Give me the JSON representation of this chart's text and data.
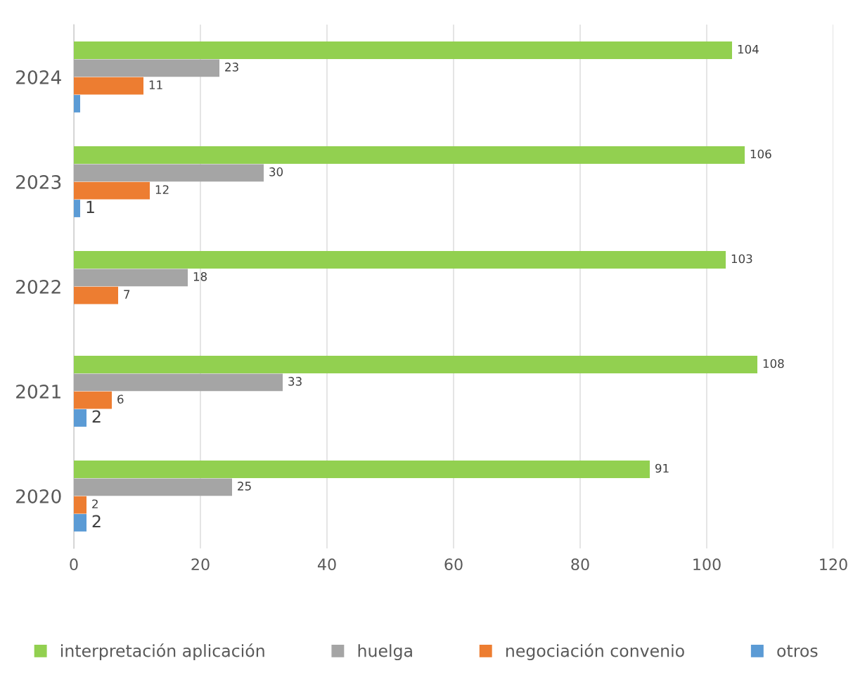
{
  "chart_data": {
    "type": "bar",
    "orientation": "horizontal",
    "categories": [
      "2024",
      "2023",
      "2022",
      "2021",
      "2020"
    ],
    "series": [
      {
        "name": "interpretación aplicación",
        "color": "#92d050",
        "values": [
          104,
          106,
          103,
          108,
          91
        ],
        "value_labels": [
          "104",
          "106",
          "103",
          "108",
          "91"
        ]
      },
      {
        "name": "huelga",
        "color": "#a5a5a5",
        "values": [
          23,
          30,
          18,
          33,
          25
        ],
        "value_labels": [
          "23",
          "30",
          "18",
          "33",
          "25"
        ]
      },
      {
        "name": "negociación convenio",
        "color": "#ed7d31",
        "values": [
          11,
          12,
          7,
          6,
          2
        ],
        "value_labels": [
          "11",
          "12",
          "7",
          "6",
          "2"
        ]
      },
      {
        "name": "otros",
        "color": "#5b9bd5",
        "values": [
          1,
          1,
          null,
          2,
          2
        ],
        "value_labels": [
          null,
          "1",
          null,
          "2",
          "2"
        ]
      }
    ],
    "xlim": [
      0,
      120
    ],
    "xticks": [
      0,
      20,
      40,
      60,
      80,
      100,
      120
    ],
    "grid": "x",
    "legend": "bottom"
  }
}
